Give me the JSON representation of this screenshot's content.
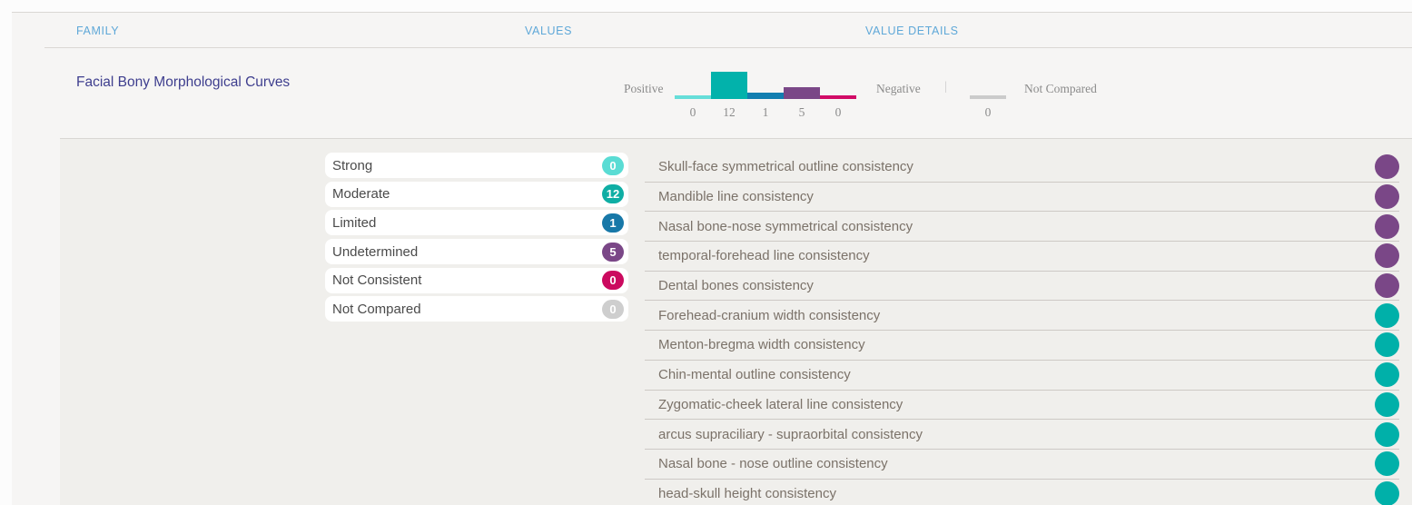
{
  "header": {
    "columns": [
      {
        "label": "FAMILY"
      },
      {
        "label": "VALUES"
      },
      {
        "label": "VALUE DETAILS"
      }
    ],
    "text_color": "#5fa8d8"
  },
  "family": {
    "name": "Facial Bony Morphological Curves",
    "name_color": "#3e3e8e"
  },
  "histogram": {
    "positive_label": "Positive",
    "negative_label": "Negative",
    "separator": "|",
    "not_compared_label": "Not Compared",
    "not_compared_value": "0",
    "not_compared_color": "#cbcbcb",
    "segments": [
      {
        "name": "strong",
        "value": 0,
        "color": "#66ded9"
      },
      {
        "name": "moderate",
        "value": 12,
        "color": "#02b2ab"
      },
      {
        "name": "limited",
        "value": 1,
        "color": "#127eb0"
      },
      {
        "name": "undetermined",
        "value": 5,
        "color": "#7a4787"
      },
      {
        "name": "not-consistent",
        "value": 0,
        "color": "#d10a66"
      }
    ]
  },
  "values_summary": [
    {
      "label": "Strong",
      "count": "0",
      "color": "#5adcd4"
    },
    {
      "label": "Moderate",
      "count": "12",
      "color": "#0faea4"
    },
    {
      "label": "Limited",
      "count": "1",
      "color": "#1878a8"
    },
    {
      "label": "Undetermined",
      "count": "5",
      "color": "#7a4787"
    },
    {
      "label": "Not Consistent",
      "count": "0",
      "color": "#cb0a5f"
    },
    {
      "label": "Not Compared",
      "count": "0",
      "color": "#cecece"
    }
  ],
  "value_details": [
    {
      "label": "Skull-face symmetrical outline consistency",
      "status": "undetermined",
      "dot_color": "#7a4787"
    },
    {
      "label": "Mandible line consistency",
      "status": "undetermined",
      "dot_color": "#7a4787"
    },
    {
      "label": "Nasal bone-nose symmetrical consistency",
      "status": "undetermined",
      "dot_color": "#7a4787"
    },
    {
      "label": "temporal-forehead line consistency",
      "status": "undetermined",
      "dot_color": "#7a4787"
    },
    {
      "label": "Dental bones consistency",
      "status": "undetermined",
      "dot_color": "#7a4787"
    },
    {
      "label": "Forehead-cranium width consistency",
      "status": "moderate",
      "dot_color": "#00b0a9"
    },
    {
      "label": "Menton-bregma width consistency",
      "status": "moderate",
      "dot_color": "#00b0a9"
    },
    {
      "label": "Chin-mental outline consistency",
      "status": "moderate",
      "dot_color": "#00b0a9"
    },
    {
      "label": "Zygomatic-cheek lateral line consistency",
      "status": "moderate",
      "dot_color": "#00b0a9"
    },
    {
      "label": "arcus supraciliary - supraorbital consistency",
      "status": "moderate",
      "dot_color": "#00b0a9"
    },
    {
      "label": "Nasal bone - nose outline consistency",
      "status": "moderate",
      "dot_color": "#00b0a9"
    },
    {
      "label": "head-skull height consistency",
      "status": "moderate",
      "dot_color": "#00b0a9"
    }
  ],
  "chart_data": {
    "type": "bar",
    "title": "Facial Bony Morphological Curves — value distribution",
    "categories": [
      "Strong",
      "Moderate",
      "Limited",
      "Undetermined",
      "Not Consistent",
      "Not Compared"
    ],
    "values": [
      0,
      12,
      1,
      5,
      0,
      0
    ],
    "tick_labels": [
      "0",
      "12",
      "1",
      "5",
      "0",
      "0"
    ],
    "annotations": [
      "Positive",
      "Negative",
      "Not Compared"
    ],
    "colors": [
      "#66ded9",
      "#02b2ab",
      "#127eb0",
      "#7a4787",
      "#d10a66",
      "#cbcbcb"
    ],
    "ylim": [
      0,
      12
    ],
    "legend_position": "none",
    "grid": false
  }
}
